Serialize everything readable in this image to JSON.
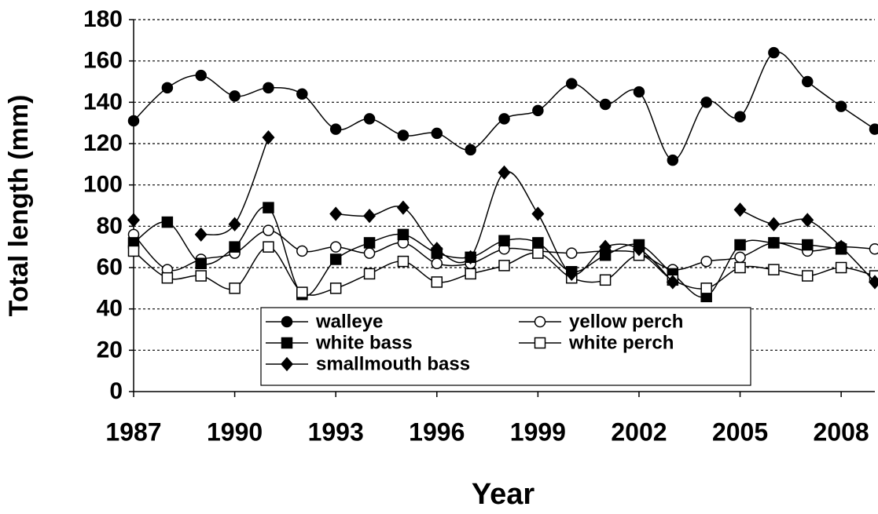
{
  "chart_data": {
    "type": "line",
    "x": [
      1987,
      1988,
      1989,
      1990,
      1991,
      1992,
      1993,
      1994,
      1995,
      1996,
      1997,
      1998,
      1999,
      2000,
      2001,
      2002,
      2003,
      2004,
      2005,
      2006,
      2007,
      2008,
      2009
    ],
    "xlabel": "Year",
    "ylabel": "Total length (mm)",
    "xlim": [
      1987,
      2009
    ],
    "xticks": [
      1987,
      1990,
      1993,
      1996,
      1999,
      2002,
      2005,
      2008
    ],
    "ylim": [
      0,
      180
    ],
    "yticks": [
      0,
      20,
      40,
      60,
      80,
      100,
      120,
      140,
      160,
      180
    ],
    "grid": true,
    "legend": "bottom center",
    "series": [
      {
        "name": "walleye",
        "color": "#000000",
        "marker": "circle",
        "marker_fill": "#000000",
        "values": [
          131,
          147,
          153,
          143,
          147,
          144,
          127,
          132,
          124,
          125,
          117,
          132,
          136,
          149,
          139,
          145,
          112,
          140,
          133,
          164,
          150,
          138,
          127
        ]
      },
      {
        "name": "yellow perch",
        "color": "#000000",
        "marker": "circle",
        "marker_fill": "#ffffff",
        "values": [
          76,
          59,
          64,
          67,
          78,
          68,
          70,
          67,
          72,
          62,
          62,
          69,
          68,
          67,
          68,
          67,
          59,
          63,
          65,
          72,
          68,
          70,
          69
        ]
      },
      {
        "name": "white bass",
        "color": "#000000",
        "marker": "square",
        "marker_fill": "#000000",
        "values": [
          72,
          82,
          62,
          70,
          89,
          47,
          64,
          72,
          76,
          67,
          65,
          73,
          72,
          58,
          66,
          71,
          57,
          46,
          71,
          72,
          71,
          69,
          null
        ]
      },
      {
        "name": "white perch",
        "color": "#000000",
        "marker": "square",
        "marker_fill": "#ffffff",
        "values": [
          68,
          55,
          56,
          50,
          70,
          48,
          50,
          57,
          63,
          53,
          57,
          61,
          67,
          55,
          54,
          66,
          54,
          50,
          60,
          59,
          56,
          60,
          56
        ]
      },
      {
        "name": "smallmouth bass",
        "color": "#000000",
        "marker": "diamond",
        "marker_fill": "#000000",
        "values": [
          83,
          null,
          76,
          81,
          123,
          null,
          86,
          85,
          89,
          69,
          65,
          106,
          86,
          57,
          70,
          69,
          53,
          null,
          88,
          81,
          83,
          70,
          53
        ]
      }
    ]
  }
}
